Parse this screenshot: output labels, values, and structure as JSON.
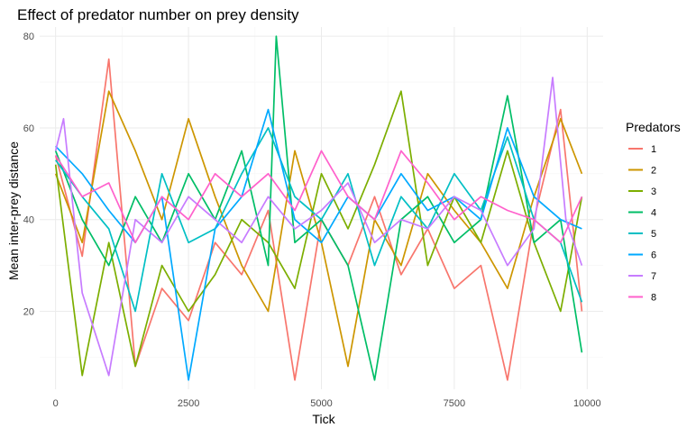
{
  "chart_data": {
    "type": "line",
    "title": "Effect of predator number on prey density",
    "xlabel": "Tick",
    "ylabel": "Mean inter-prey distance",
    "xlim": [
      -300,
      10300
    ],
    "ylim": [
      3,
      82
    ],
    "x_ticks": [
      0,
      2500,
      5000,
      7500,
      10000
    ],
    "x_tick_labels": [
      "0",
      "2500",
      "5000",
      "7500",
      "10000"
    ],
    "y_ticks": [
      20,
      40,
      60,
      80
    ],
    "y_tick_labels": [
      "20",
      "40",
      "60",
      "80"
    ],
    "grid": true,
    "legend": {
      "title": "Predators",
      "position": "right"
    },
    "series": [
      {
        "name": "1",
        "color": "#F8766D",
        "values": [
          [
            0,
            54
          ],
          [
            500,
            32
          ],
          [
            1000,
            75
          ],
          [
            1500,
            8
          ],
          [
            2000,
            25
          ],
          [
            2500,
            18
          ],
          [
            3000,
            35
          ],
          [
            3500,
            28
          ],
          [
            4000,
            42
          ],
          [
            4500,
            5
          ],
          [
            5000,
            40
          ],
          [
            5500,
            30
          ],
          [
            6000,
            45
          ],
          [
            6500,
            28
          ],
          [
            7000,
            38
          ],
          [
            7500,
            25
          ],
          [
            8000,
            30
          ],
          [
            8500,
            5
          ],
          [
            9000,
            40
          ],
          [
            9500,
            64
          ],
          [
            9900,
            20
          ]
        ]
      },
      {
        "name": "2",
        "color": "#CD9600",
        "values": [
          [
            0,
            50
          ],
          [
            500,
            35
          ],
          [
            1000,
            68
          ],
          [
            1500,
            55
          ],
          [
            2000,
            40
          ],
          [
            2500,
            62
          ],
          [
            3000,
            45
          ],
          [
            3500,
            30
          ],
          [
            4000,
            20
          ],
          [
            4500,
            55
          ],
          [
            5000,
            35
          ],
          [
            5500,
            8
          ],
          [
            6000,
            40
          ],
          [
            6500,
            30
          ],
          [
            7000,
            50
          ],
          [
            7500,
            42
          ],
          [
            8000,
            35
          ],
          [
            8500,
            25
          ],
          [
            9000,
            45
          ],
          [
            9500,
            62
          ],
          [
            9900,
            50
          ]
        ]
      },
      {
        "name": "3",
        "color": "#7CAE00",
        "values": [
          [
            0,
            52
          ],
          [
            500,
            6
          ],
          [
            1000,
            35
          ],
          [
            1500,
            8
          ],
          [
            2000,
            30
          ],
          [
            2500,
            20
          ],
          [
            3000,
            28
          ],
          [
            3500,
            40
          ],
          [
            4000,
            35
          ],
          [
            4500,
            25
          ],
          [
            5000,
            50
          ],
          [
            5500,
            38
          ],
          [
            6000,
            52
          ],
          [
            6500,
            68
          ],
          [
            7000,
            30
          ],
          [
            7500,
            45
          ],
          [
            8000,
            35
          ],
          [
            8500,
            55
          ],
          [
            9000,
            35
          ],
          [
            9500,
            20
          ],
          [
            9900,
            45
          ]
        ]
      },
      {
        "name": "4",
        "color": "#00BE67",
        "values": [
          [
            0,
            55
          ],
          [
            500,
            40
          ],
          [
            1000,
            30
          ],
          [
            1500,
            45
          ],
          [
            2000,
            35
          ],
          [
            2500,
            50
          ],
          [
            3000,
            40
          ],
          [
            3500,
            55
          ],
          [
            4000,
            30
          ],
          [
            4150,
            80
          ],
          [
            4500,
            35
          ],
          [
            5000,
            40
          ],
          [
            5500,
            30
          ],
          [
            6000,
            5
          ],
          [
            6500,
            40
          ],
          [
            7000,
            45
          ],
          [
            7500,
            35
          ],
          [
            8000,
            40
          ],
          [
            8500,
            67
          ],
          [
            9000,
            35
          ],
          [
            9500,
            40
          ],
          [
            9900,
            11
          ]
        ]
      },
      {
        "name": "5",
        "color": "#00BFC4",
        "values": [
          [
            0,
            53
          ],
          [
            500,
            45
          ],
          [
            1000,
            38
          ],
          [
            1500,
            20
          ],
          [
            2000,
            50
          ],
          [
            2500,
            35
          ],
          [
            3000,
            38
          ],
          [
            3500,
            50
          ],
          [
            4000,
            60
          ],
          [
            4500,
            45
          ],
          [
            5000,
            40
          ],
          [
            5500,
            50
          ],
          [
            6000,
            30
          ],
          [
            6500,
            45
          ],
          [
            7000,
            38
          ],
          [
            7500,
            50
          ],
          [
            8000,
            42
          ],
          [
            8500,
            58
          ],
          [
            9000,
            40
          ],
          [
            9500,
            35
          ],
          [
            9900,
            22
          ]
        ]
      },
      {
        "name": "6",
        "color": "#00A9FF",
        "values": [
          [
            0,
            56
          ],
          [
            500,
            50
          ],
          [
            1000,
            42
          ],
          [
            1500,
            35
          ],
          [
            2000,
            45
          ],
          [
            2500,
            5
          ],
          [
            3000,
            38
          ],
          [
            3500,
            45
          ],
          [
            4000,
            64
          ],
          [
            4500,
            40
          ],
          [
            5000,
            35
          ],
          [
            5500,
            45
          ],
          [
            6000,
            40
          ],
          [
            6500,
            50
          ],
          [
            7000,
            42
          ],
          [
            7500,
            45
          ],
          [
            8000,
            40
          ],
          [
            8500,
            60
          ],
          [
            9000,
            45
          ],
          [
            9500,
            40
          ],
          [
            9900,
            38
          ]
        ]
      },
      {
        "name": "7",
        "color": "#C77CFF",
        "values": [
          [
            0,
            55
          ],
          [
            150,
            62
          ],
          [
            500,
            24
          ],
          [
            1000,
            6
          ],
          [
            1500,
            40
          ],
          [
            2000,
            35
          ],
          [
            2500,
            45
          ],
          [
            3000,
            40
          ],
          [
            3500,
            35
          ],
          [
            4000,
            45
          ],
          [
            4500,
            38
          ],
          [
            5000,
            42
          ],
          [
            5500,
            48
          ],
          [
            6000,
            35
          ],
          [
            6500,
            40
          ],
          [
            7000,
            38
          ],
          [
            7500,
            45
          ],
          [
            8000,
            42
          ],
          [
            8500,
            30
          ],
          [
            9000,
            38
          ],
          [
            9350,
            71
          ],
          [
            9600,
            40
          ],
          [
            9900,
            30
          ]
        ]
      },
      {
        "name": "8",
        "color": "#FF61CC",
        "values": [
          [
            0,
            54
          ],
          [
            500,
            45
          ],
          [
            1000,
            48
          ],
          [
            1500,
            35
          ],
          [
            2000,
            45
          ],
          [
            2500,
            40
          ],
          [
            3000,
            50
          ],
          [
            3500,
            45
          ],
          [
            4000,
            50
          ],
          [
            4500,
            42
          ],
          [
            5000,
            55
          ],
          [
            5500,
            45
          ],
          [
            6000,
            40
          ],
          [
            6500,
            55
          ],
          [
            7000,
            48
          ],
          [
            7500,
            40
          ],
          [
            8000,
            45
          ],
          [
            8500,
            42
          ],
          [
            9000,
            40
          ],
          [
            9500,
            35
          ],
          [
            9900,
            45
          ]
        ]
      }
    ]
  }
}
